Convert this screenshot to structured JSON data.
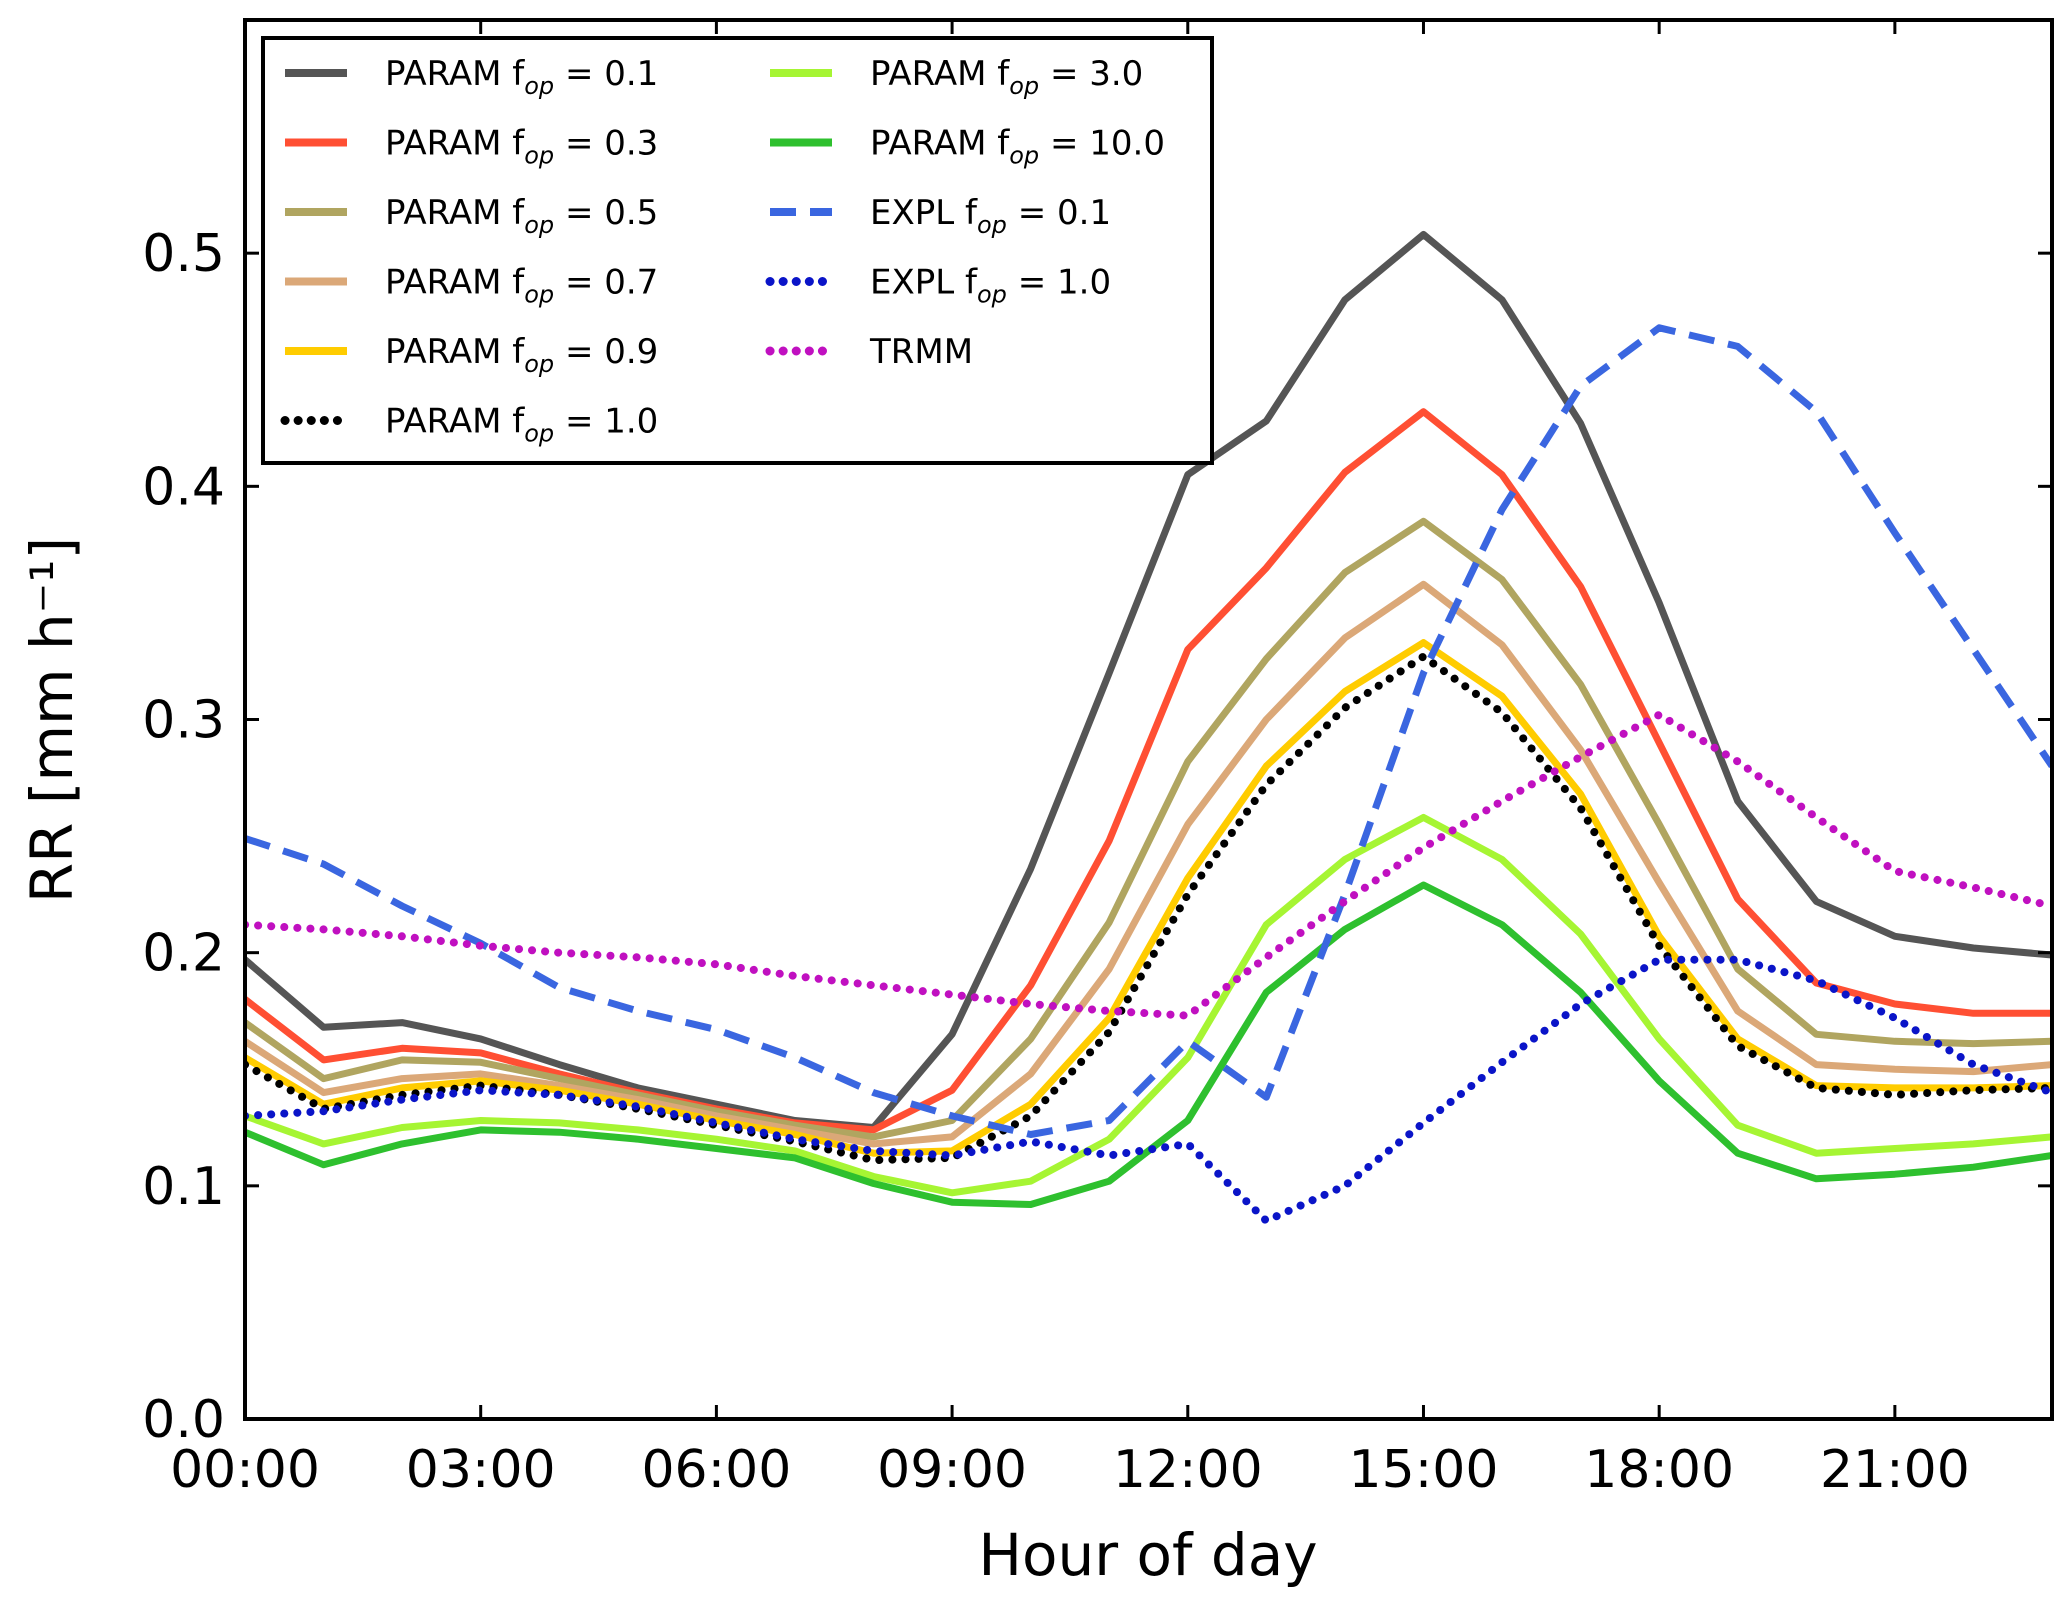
{
  "chart_data": {
    "type": "line",
    "title": "",
    "xlabel": "Hour of day",
    "ylabel": "RR [mm h⁻¹]",
    "xlim": [
      0,
      23
    ],
    "ylim": [
      0,
      0.6
    ],
    "grid": false,
    "legend_placement": "top-left",
    "x": [
      0,
      1,
      2,
      3,
      4,
      5,
      6,
      7,
      8,
      9,
      10,
      11,
      12,
      13,
      14,
      15,
      16,
      17,
      18,
      19,
      20,
      21,
      22,
      23
    ],
    "x_ticks": [
      0,
      3,
      6,
      9,
      12,
      15,
      18,
      21
    ],
    "x_tick_labels": [
      "00:00",
      "03:00",
      "06:00",
      "09:00",
      "12:00",
      "15:00",
      "18:00",
      "21:00"
    ],
    "y_ticks": [
      0.0,
      0.1,
      0.2,
      0.3,
      0.4,
      0.5
    ],
    "y_tick_labels": [
      "0.0",
      "0.1",
      "0.2",
      "0.3",
      "0.4",
      "0.5"
    ],
    "series": [
      {
        "name": "PARAM f_op = 0.1",
        "label": {
          "pre": "PARAM f",
          "sub": "op",
          "post": " = 0.1"
        },
        "color": "#555555",
        "style": "solid",
        "values": [
          0.197,
          0.168,
          0.17,
          0.163,
          0.152,
          0.142,
          0.135,
          0.128,
          0.125,
          0.165,
          0.236,
          0.32,
          0.405,
          0.428,
          0.48,
          0.508,
          0.48,
          0.427,
          0.35,
          0.265,
          0.222,
          0.207,
          0.202,
          0.199
        ]
      },
      {
        "name": "PARAM f_op = 0.3",
        "label": {
          "pre": "PARAM f",
          "sub": "op",
          "post": " = 0.3"
        },
        "color": "#ff4f33",
        "style": "solid",
        "values": [
          0.18,
          0.154,
          0.159,
          0.157,
          0.148,
          0.14,
          0.133,
          0.127,
          0.124,
          0.141,
          0.186,
          0.248,
          0.33,
          0.365,
          0.406,
          0.432,
          0.405,
          0.357,
          0.29,
          0.223,
          0.187,
          0.178,
          0.174,
          0.174
        ]
      },
      {
        "name": "PARAM f_op = 0.5",
        "label": {
          "pre": "PARAM f",
          "sub": "op",
          "post": " = 0.5"
        },
        "color": "#b0a560",
        "style": "solid",
        "values": [
          0.17,
          0.146,
          0.154,
          0.153,
          0.146,
          0.139,
          0.132,
          0.126,
          0.121,
          0.128,
          0.163,
          0.213,
          0.282,
          0.326,
          0.363,
          0.385,
          0.36,
          0.315,
          0.255,
          0.193,
          0.165,
          0.162,
          0.161,
          0.162
        ]
      },
      {
        "name": "PARAM f_op = 0.7",
        "label": {
          "pre": "PARAM f",
          "sub": "op",
          "post": " = 0.7"
        },
        "color": "#dba878",
        "style": "solid",
        "values": [
          0.162,
          0.14,
          0.146,
          0.148,
          0.143,
          0.137,
          0.13,
          0.124,
          0.118,
          0.121,
          0.148,
          0.193,
          0.255,
          0.3,
          0.335,
          0.358,
          0.332,
          0.287,
          0.23,
          0.175,
          0.152,
          0.15,
          0.149,
          0.152
        ]
      },
      {
        "name": "PARAM f_op = 0.9",
        "label": {
          "pre": "PARAM f",
          "sub": "op",
          "post": " = 0.9"
        },
        "color": "#ffcc00",
        "style": "solid",
        "values": [
          0.155,
          0.135,
          0.142,
          0.145,
          0.141,
          0.135,
          0.128,
          0.122,
          0.114,
          0.115,
          0.135,
          0.172,
          0.232,
          0.28,
          0.312,
          0.333,
          0.31,
          0.268,
          0.207,
          0.163,
          0.143,
          0.142,
          0.142,
          0.143
        ]
      },
      {
        "name": "PARAM f_op = 1.0",
        "label": {
          "pre": "PARAM f",
          "sub": "op",
          "post": " = 1.0"
        },
        "color": "#000000",
        "style": "dotted",
        "values": [
          0.152,
          0.133,
          0.139,
          0.143,
          0.139,
          0.133,
          0.126,
          0.119,
          0.111,
          0.112,
          0.13,
          0.166,
          0.225,
          0.272,
          0.305,
          0.327,
          0.303,
          0.262,
          0.203,
          0.16,
          0.142,
          0.139,
          0.141,
          0.142
        ]
      },
      {
        "name": "PARAM f_op = 3.0",
        "label": {
          "pre": "PARAM f",
          "sub": "op",
          "post": " = 3.0"
        },
        "color": "#a6f533",
        "style": "solid",
        "values": [
          0.13,
          0.118,
          0.125,
          0.128,
          0.127,
          0.124,
          0.12,
          0.115,
          0.104,
          0.097,
          0.102,
          0.12,
          0.155,
          0.212,
          0.24,
          0.258,
          0.24,
          0.208,
          0.163,
          0.126,
          0.114,
          0.116,
          0.118,
          0.121
        ]
      },
      {
        "name": "PARAM f_op = 10.0",
        "label": {
          "pre": "PARAM f",
          "sub": "op",
          "post": " = 10.0"
        },
        "color": "#2ec02e",
        "style": "solid",
        "values": [
          0.123,
          0.109,
          0.118,
          0.124,
          0.123,
          0.12,
          0.116,
          0.112,
          0.101,
          0.093,
          0.092,
          0.102,
          0.128,
          0.183,
          0.21,
          0.229,
          0.212,
          0.183,
          0.145,
          0.114,
          0.103,
          0.105,
          0.108,
          0.113
        ]
      },
      {
        "name": "EXPL f_op = 0.1",
        "label": {
          "pre": "EXPL  f",
          "sub": "op",
          "post": " = 0.1"
        },
        "color": "#3a66e0",
        "style": "dashed",
        "values": [
          0.249,
          0.238,
          0.22,
          0.204,
          0.185,
          0.175,
          0.167,
          0.155,
          0.14,
          0.13,
          0.122,
          0.128,
          0.162,
          0.138,
          0.225,
          0.32,
          0.39,
          0.443,
          0.468,
          0.46,
          0.432,
          0.38,
          0.33,
          0.28
        ]
      },
      {
        "name": "EXPL f_op = 1.0",
        "label": {
          "pre": "EXPL  f",
          "sub": "op",
          "post": " = 1.0"
        },
        "color": "#0a14c8",
        "style": "dotted",
        "values": [
          0.13,
          0.132,
          0.137,
          0.141,
          0.139,
          0.134,
          0.127,
          0.12,
          0.115,
          0.113,
          0.119,
          0.113,
          0.118,
          0.085,
          0.1,
          0.127,
          0.153,
          0.178,
          0.197,
          0.197,
          0.188,
          0.172,
          0.152,
          0.14
        ]
      },
      {
        "name": "TRMM",
        "label": {
          "pre": "TRMM",
          "sub": "",
          "post": ""
        },
        "color": "#c010c0",
        "style": "dotted",
        "values": [
          0.212,
          0.21,
          0.207,
          0.203,
          0.2,
          0.198,
          0.195,
          0.19,
          0.186,
          0.182,
          0.178,
          0.175,
          0.173,
          0.198,
          0.222,
          0.245,
          0.265,
          0.284,
          0.302,
          0.282,
          0.258,
          0.235,
          0.228,
          0.22
        ]
      }
    ]
  }
}
